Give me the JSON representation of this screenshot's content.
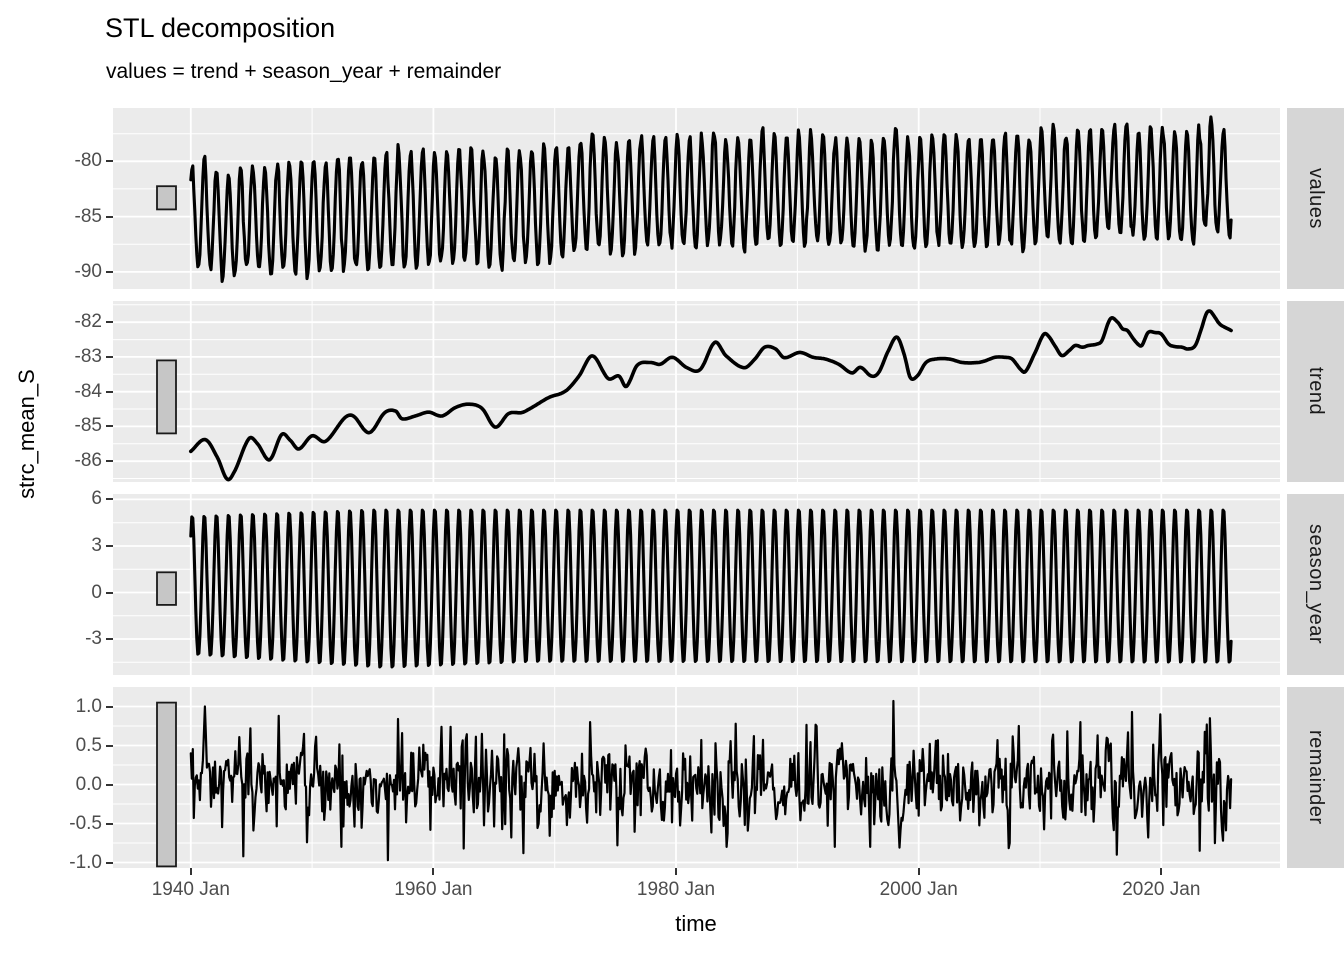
{
  "title": "STL decomposition",
  "subtitle": "values = trend + season_year + remainder",
  "x_axis_title": "time",
  "y_axis_title": "strc_mean_S",
  "strip_labels": [
    "values",
    "trend",
    "season_year",
    "remainder"
  ],
  "style": {
    "panel_bg": "#EBEBEB",
    "grid": "#FFFFFF",
    "strip_bg": "#D6D6D6",
    "strip_text": "#1A1A1A",
    "tick_text": "#4D4D4D",
    "tick_mark": "#333333",
    "line": "#000000",
    "scale_bar_fill": "#C6C6C6",
    "scale_bar_stroke": "#1A1A1A",
    "background": "#FFFFFF"
  },
  "chart_data": {
    "type": "line",
    "title": "STL decomposition",
    "subtitle": "values = trend + season_year + remainder",
    "xlabel": "time",
    "ylabel": "strc_mean_S",
    "frequency": "monthly",
    "x_start_year": 1940.0,
    "x_end_year": 2025.75,
    "x_domain": [
      1933.59,
      2029.8
    ],
    "x_major_ticks": [
      1940,
      1960,
      1980,
      2000,
      2020
    ],
    "x_tick_labels": [
      "1940 Jan",
      "1960 Jan",
      "1980 Jan",
      "2000 Jan",
      "2020 Jan"
    ],
    "x_minor_ticks": [
      1950,
      1970,
      1990,
      2010
    ],
    "grid": "major and minor, white on grey panel",
    "legend_position": "none",
    "panels": [
      {
        "name": "values",
        "ylim": [
          -91.55,
          -75.18
        ],
        "yticks": [
          -80,
          -85,
          -90
        ],
        "ytick_labels": [
          "-80",
          "-85",
          "-90"
        ],
        "yminor": [
          -77.5,
          -82.5,
          -87.5
        ],
        "scale_bar": [
          -84.35,
          -82.25
        ],
        "series_rule": "values = trend + season_year + remainder",
        "approx_range": [
          -90.6,
          -75.8
        ]
      },
      {
        "name": "trend",
        "ylim": [
          -86.6,
          -81.39
        ],
        "yticks": [
          -82,
          -83,
          -84,
          -85,
          -86
        ],
        "ytick_labels": [
          "-82",
          "-83",
          "-84",
          "-85",
          "-86"
        ],
        "yminor": [
          -81.5,
          -82.5,
          -83.5,
          -84.5,
          -85.5,
          -86.5
        ],
        "scale_bar": [
          -85.2,
          -83.1
        ],
        "points": [
          [
            1940.0,
            -85.72
          ],
          [
            1941.2,
            -85.38
          ],
          [
            1942.2,
            -85.9
          ],
          [
            1943.0,
            -86.52
          ],
          [
            1943.6,
            -86.3
          ],
          [
            1944.8,
            -85.35
          ],
          [
            1945.5,
            -85.5
          ],
          [
            1946.5,
            -85.96
          ],
          [
            1947.5,
            -85.23
          ],
          [
            1948.2,
            -85.4
          ],
          [
            1948.9,
            -85.65
          ],
          [
            1950.0,
            -85.27
          ],
          [
            1951.1,
            -85.43
          ],
          [
            1952.7,
            -84.75
          ],
          [
            1953.4,
            -84.7
          ],
          [
            1954.7,
            -85.18
          ],
          [
            1956.0,
            -84.6
          ],
          [
            1956.9,
            -84.56
          ],
          [
            1957.4,
            -84.78
          ],
          [
            1958.5,
            -84.7
          ],
          [
            1959.6,
            -84.59
          ],
          [
            1960.7,
            -84.7
          ],
          [
            1961.8,
            -84.46
          ],
          [
            1962.9,
            -84.36
          ],
          [
            1964.0,
            -84.48
          ],
          [
            1965.1,
            -85.02
          ],
          [
            1966.2,
            -84.63
          ],
          [
            1967.3,
            -84.6
          ],
          [
            1968.1,
            -84.46
          ],
          [
            1969.5,
            -84.17
          ],
          [
            1970.9,
            -83.98
          ],
          [
            1972.0,
            -83.55
          ],
          [
            1973.1,
            -82.97
          ],
          [
            1974.4,
            -83.62
          ],
          [
            1975.3,
            -83.55
          ],
          [
            1975.9,
            -83.85
          ],
          [
            1976.8,
            -83.24
          ],
          [
            1977.9,
            -83.16
          ],
          [
            1978.7,
            -83.21
          ],
          [
            1979.7,
            -83.01
          ],
          [
            1980.9,
            -83.31
          ],
          [
            1982.0,
            -83.36
          ],
          [
            1983.2,
            -82.58
          ],
          [
            1984.1,
            -82.96
          ],
          [
            1985.6,
            -83.31
          ],
          [
            1986.5,
            -83.06
          ],
          [
            1987.3,
            -82.72
          ],
          [
            1988.2,
            -82.77
          ],
          [
            1988.9,
            -83.02
          ],
          [
            1990.2,
            -82.87
          ],
          [
            1991.3,
            -83.01
          ],
          [
            1992.3,
            -83.06
          ],
          [
            1993.4,
            -83.21
          ],
          [
            1994.5,
            -83.46
          ],
          [
            1995.2,
            -83.3
          ],
          [
            1996.1,
            -83.55
          ],
          [
            1996.7,
            -83.45
          ],
          [
            1997.5,
            -82.82
          ],
          [
            1998.2,
            -82.43
          ],
          [
            1998.8,
            -82.92
          ],
          [
            1999.3,
            -83.59
          ],
          [
            1999.9,
            -83.54
          ],
          [
            2000.6,
            -83.16
          ],
          [
            2001.4,
            -83.06
          ],
          [
            2002.5,
            -83.06
          ],
          [
            2003.6,
            -83.16
          ],
          [
            2004.9,
            -83.16
          ],
          [
            2005.5,
            -83.11
          ],
          [
            2006.3,
            -83.01
          ],
          [
            2007.1,
            -83.01
          ],
          [
            2007.7,
            -83.06
          ],
          [
            2008.4,
            -83.36
          ],
          [
            2008.8,
            -83.42
          ],
          [
            2009.6,
            -82.87
          ],
          [
            2010.3,
            -82.35
          ],
          [
            2010.7,
            -82.4
          ],
          [
            2011.3,
            -82.72
          ],
          [
            2011.8,
            -82.96
          ],
          [
            2012.4,
            -82.82
          ],
          [
            2012.9,
            -82.67
          ],
          [
            2013.5,
            -82.72
          ],
          [
            2014.0,
            -82.67
          ],
          [
            2014.7,
            -82.63
          ],
          [
            2015.1,
            -82.53
          ],
          [
            2015.8,
            -81.9
          ],
          [
            2016.4,
            -82.0
          ],
          [
            2016.8,
            -82.19
          ],
          [
            2017.2,
            -82.24
          ],
          [
            2017.7,
            -82.48
          ],
          [
            2018.1,
            -82.64
          ],
          [
            2018.4,
            -82.67
          ],
          [
            2018.9,
            -82.3
          ],
          [
            2019.5,
            -82.3
          ],
          [
            2020.0,
            -82.34
          ],
          [
            2020.6,
            -82.63
          ],
          [
            2021.1,
            -82.7
          ],
          [
            2021.7,
            -82.72
          ],
          [
            2022.2,
            -82.77
          ],
          [
            2022.8,
            -82.67
          ],
          [
            2023.3,
            -82.19
          ],
          [
            2023.7,
            -81.76
          ],
          [
            2024.0,
            -81.68
          ],
          [
            2024.4,
            -81.85
          ],
          [
            2024.8,
            -82.05
          ],
          [
            2025.2,
            -82.14
          ],
          [
            2025.6,
            -82.21
          ],
          [
            2025.75,
            -82.24
          ]
        ]
      },
      {
        "name": "season_year",
        "ylim": [
          -5.32,
          6.35
        ],
        "yticks": [
          6,
          3,
          0,
          -3
        ],
        "ytick_labels": [
          "6",
          "3",
          "0",
          "-3"
        ],
        "yminor": [
          4.5,
          1.5,
          -1.5,
          -4.5
        ],
        "scale_bar": [
          -0.8,
          1.3
        ],
        "seasonal": {
          "period_years": 1,
          "peak_phase": 0.12,
          "amplitude_top": [
            [
              1940,
              5.0
            ],
            [
              1955,
              5.45
            ],
            [
              2026,
              5.45
            ]
          ],
          "amplitude_bottom": [
            [
              1940,
              4.05
            ],
            [
              1956,
              4.95
            ],
            [
              1968,
              4.55
            ],
            [
              2026,
              4.6
            ]
          ]
        }
      },
      {
        "name": "remainder",
        "ylim": [
          -1.07,
          1.25
        ],
        "yticks": [
          1.0,
          0.5,
          0.0,
          -0.5,
          -1.0
        ],
        "ytick_labels": [
          "1.0",
          "0.5",
          "0.0",
          "-0.5",
          "-1.0"
        ],
        "yminor": [
          0.75,
          0.25,
          -0.25,
          -0.75
        ],
        "scale_bar": [
          -1.05,
          1.05
        ],
        "noise": {
          "seed": 97,
          "sd": 0.29,
          "ar1": 0.25,
          "clip": [
            -0.98,
            1.0
          ]
        },
        "spikes": [
          [
            1944.33,
            -0.92
          ],
          [
            1944.9,
            0.72
          ],
          [
            1947.25,
            0.88
          ],
          [
            1949.6,
            -0.74
          ],
          [
            1952.4,
            -0.8
          ],
          [
            1956.25,
            -0.97
          ],
          [
            1957.1,
            0.84
          ],
          [
            1961.4,
            0.74
          ],
          [
            1962.5,
            -0.82
          ],
          [
            1967.4,
            -0.88
          ],
          [
            1972.9,
            0.8
          ],
          [
            1975.2,
            -0.78
          ],
          [
            1984.2,
            -0.8
          ],
          [
            1984.9,
            0.78
          ],
          [
            1993.1,
            -0.8
          ],
          [
            1996.0,
            -0.8
          ],
          [
            1997.92,
            1.07
          ],
          [
            2007.5,
            -0.75
          ],
          [
            2013.3,
            0.8
          ],
          [
            2016.3,
            -0.9
          ],
          [
            2017.6,
            0.93
          ],
          [
            2019.9,
            0.9
          ],
          [
            2023.2,
            -0.85
          ],
          [
            2024.0,
            0.85
          ],
          [
            2025.1,
            -0.72
          ]
        ]
      }
    ]
  }
}
